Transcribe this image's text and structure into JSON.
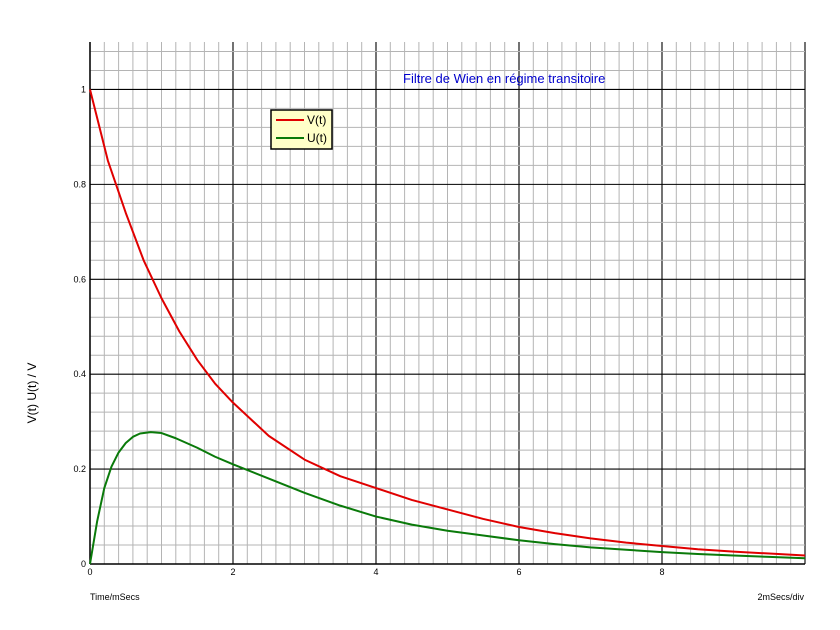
{
  "chart_data": {
    "type": "line",
    "title": "Filtre de Wien en régime transitoire",
    "ylabel": "V(t) U(t) / V",
    "xlabel": "Time/mSecs",
    "x_scale_note": "2mSecs/div",
    "xlim": [
      0,
      10
    ],
    "ylim": [
      0,
      1.1
    ],
    "x_ticks": [
      0,
      2,
      4,
      6,
      8
    ],
    "y_ticks": [
      0,
      0.2,
      0.4,
      0.6,
      0.8,
      1
    ],
    "grid": true,
    "legend_position": "top-left-inside",
    "series": [
      {
        "name": "V(t)",
        "color": "#e00000",
        "x": [
          0,
          0.25,
          0.5,
          0.75,
          1,
          1.25,
          1.5,
          1.75,
          2,
          2.5,
          3,
          3.5,
          4,
          4.5,
          5,
          5.5,
          6,
          6.5,
          7,
          7.5,
          8,
          8.5,
          9,
          9.5,
          10
        ],
        "y": [
          1,
          0.85,
          0.74,
          0.64,
          0.56,
          0.49,
          0.43,
          0.38,
          0.34,
          0.27,
          0.22,
          0.185,
          0.16,
          0.135,
          0.115,
          0.095,
          0.078,
          0.065,
          0.054,
          0.045,
          0.038,
          0.031,
          0.026,
          0.022,
          0.018
        ]
      },
      {
        "name": "U(t)",
        "color": "#0a7a0a",
        "x": [
          0,
          0.1,
          0.2,
          0.3,
          0.4,
          0.5,
          0.6,
          0.7,
          0.85,
          1,
          1.2,
          1.5,
          1.75,
          2,
          2.5,
          3,
          3.5,
          4,
          4.5,
          5,
          5.5,
          6,
          6.5,
          7,
          7.5,
          8,
          8.5,
          9,
          9.5,
          10
        ],
        "y": [
          0,
          0.09,
          0.16,
          0.205,
          0.235,
          0.255,
          0.268,
          0.275,
          0.278,
          0.276,
          0.265,
          0.245,
          0.226,
          0.21,
          0.18,
          0.15,
          0.123,
          0.1,
          0.083,
          0.07,
          0.06,
          0.05,
          0.042,
          0.035,
          0.03,
          0.025,
          0.021,
          0.018,
          0.015,
          0.012
        ]
      }
    ]
  }
}
